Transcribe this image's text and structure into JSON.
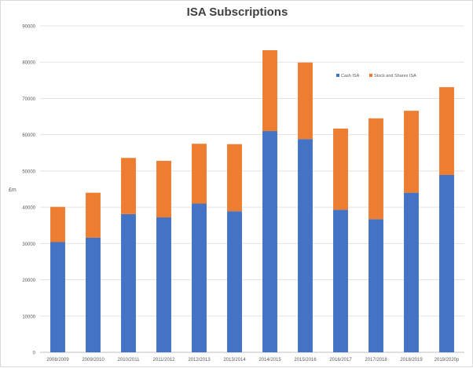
{
  "chart_data": {
    "type": "bar",
    "stacked": true,
    "title": "ISA Subscriptions",
    "xlabel": "",
    "ylabel": "£m",
    "ylim": [
      0,
      90000
    ],
    "yticks": [
      "0",
      "10000",
      "20000",
      "30000",
      "40000",
      "50000",
      "60000",
      "70000",
      "80000",
      "90000"
    ],
    "grid": true,
    "legend_position": "top-right",
    "categories": [
      "2008/2009",
      "2009/2010",
      "2010/2011",
      "2011/2012",
      "2012/2013",
      "2013/2014",
      "2014/2015",
      "2015/2016",
      "2016/2017",
      "2017/2018",
      "2018/2019",
      "2019/2020p"
    ],
    "series": [
      {
        "name": "Cash ISA",
        "color": "#4472c4",
        "values": [
          30400,
          31600,
          38100,
          37200,
          41000,
          38900,
          61000,
          58800,
          39300,
          36700,
          44000,
          48900
        ]
      },
      {
        "name": "Stock and Shares ISA",
        "color": "#ed7d31",
        "values": [
          9700,
          12400,
          15500,
          15600,
          16500,
          18500,
          22300,
          21100,
          22400,
          27800,
          22600,
          24200
        ]
      }
    ]
  }
}
